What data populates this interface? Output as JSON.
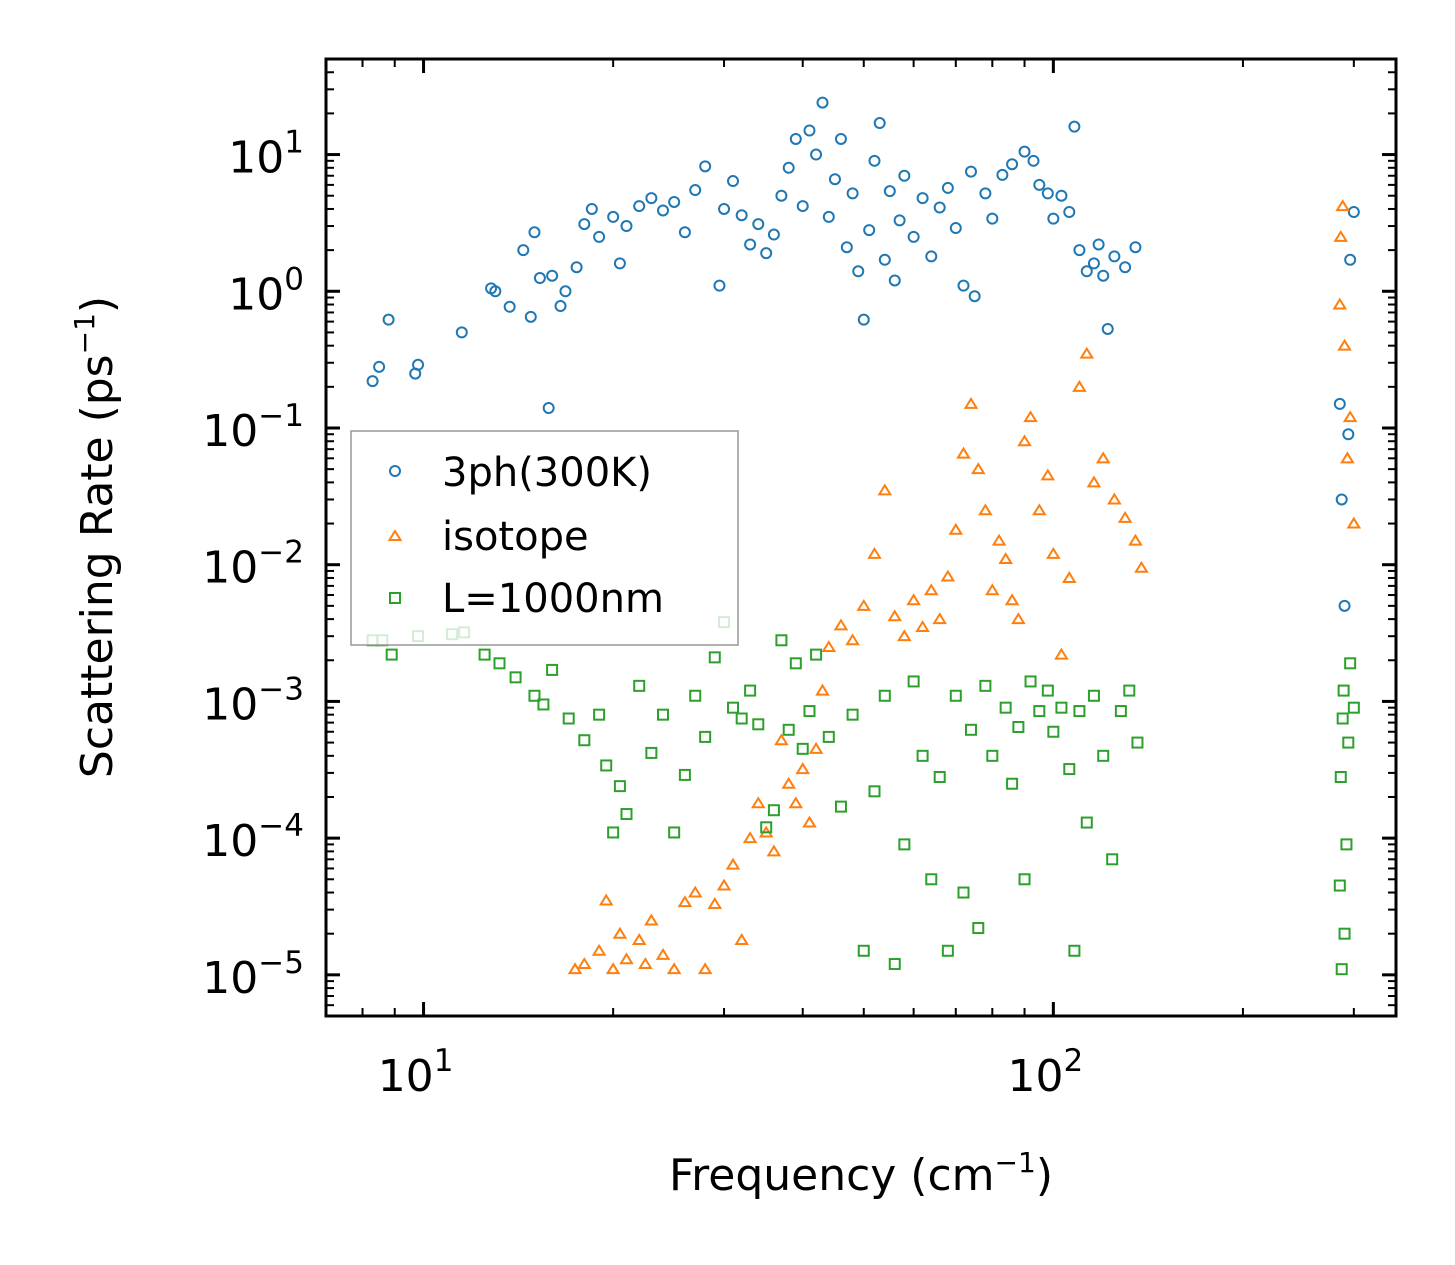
{
  "chart_data": {
    "type": "scatter",
    "xscale": "log",
    "yscale": "log",
    "xlim": [
      7.0,
      350.0
    ],
    "ylim": [
      5e-06,
      50
    ],
    "xlabel": {
      "base": "Frequency (cm",
      "sup": "−1",
      "tail": ")"
    },
    "ylabel": {
      "base": "Scattering Rate (ps",
      "sup": "−1",
      "tail": ")"
    },
    "x_major_ticks": [
      {
        "value": 10,
        "base": "10",
        "exp": "1"
      },
      {
        "value": 100,
        "base": "10",
        "exp": "2"
      }
    ],
    "y_major_ticks": [
      {
        "value": 10,
        "base": "10",
        "exp": "1"
      },
      {
        "value": 1,
        "base": "10",
        "exp": "0"
      },
      {
        "value": 0.1,
        "base": "10",
        "exp": "−1"
      },
      {
        "value": 0.01,
        "base": "10",
        "exp": "−2"
      },
      {
        "value": 0.001,
        "base": "10",
        "exp": "−3"
      },
      {
        "value": 0.0001,
        "base": "10",
        "exp": "−4"
      },
      {
        "value": 1e-05,
        "base": "10",
        "exp": "−5"
      }
    ],
    "legend_position": "center-left",
    "series": [
      {
        "name": "3ph(300K)",
        "marker": "circle",
        "color": "#1f77b4",
        "points": [
          [
            8.3,
            0.22
          ],
          [
            8.5,
            0.28
          ],
          [
            8.8,
            0.62
          ],
          [
            9.7,
            0.25
          ],
          [
            9.8,
            0.29
          ],
          [
            11.5,
            0.5
          ],
          [
            12.8,
            1.05
          ],
          [
            13.0,
            1.0
          ],
          [
            13.7,
            0.77
          ],
          [
            14.4,
            2.0
          ],
          [
            14.8,
            0.65
          ],
          [
            15.0,
            2.7
          ],
          [
            15.3,
            1.25
          ],
          [
            15.8,
            0.14
          ],
          [
            16.0,
            1.3
          ],
          [
            16.5,
            0.78
          ],
          [
            16.8,
            1.0
          ],
          [
            17.5,
            1.5
          ],
          [
            18.0,
            3.1
          ],
          [
            18.5,
            4.0
          ],
          [
            19.0,
            2.5
          ],
          [
            20.0,
            3.5
          ],
          [
            20.5,
            1.6
          ],
          [
            21.0,
            3.0
          ],
          [
            22.0,
            4.2
          ],
          [
            23.0,
            4.8
          ],
          [
            24.0,
            3.9
          ],
          [
            25.0,
            4.5
          ],
          [
            26.0,
            2.7
          ],
          [
            27.0,
            5.5
          ],
          [
            28.0,
            8.2
          ],
          [
            29.5,
            1.1
          ],
          [
            30.0,
            4.0
          ],
          [
            31.0,
            6.4
          ],
          [
            32.0,
            3.6
          ],
          [
            33.0,
            2.2
          ],
          [
            34.0,
            3.1
          ],
          [
            35.0,
            1.9
          ],
          [
            36.0,
            2.6
          ],
          [
            37.0,
            5.0
          ],
          [
            38.0,
            8.0
          ],
          [
            39.0,
            13.0
          ],
          [
            40.0,
            4.2
          ],
          [
            41.0,
            15.0
          ],
          [
            42.0,
            10.0
          ],
          [
            43.0,
            24.0
          ],
          [
            44.0,
            3.5
          ],
          [
            45.0,
            6.6
          ],
          [
            46.0,
            13.0
          ],
          [
            47.0,
            2.1
          ],
          [
            48.0,
            5.2
          ],
          [
            49.0,
            1.4
          ],
          [
            50.0,
            0.62
          ],
          [
            51.0,
            2.8
          ],
          [
            52.0,
            9.0
          ],
          [
            53.0,
            17.0
          ],
          [
            54.0,
            1.7
          ],
          [
            55.0,
            5.4
          ],
          [
            56.0,
            1.2
          ],
          [
            57.0,
            3.3
          ],
          [
            58.0,
            7.0
          ],
          [
            60.0,
            2.5
          ],
          [
            62.0,
            4.8
          ],
          [
            64.0,
            1.8
          ],
          [
            66.0,
            4.1
          ],
          [
            68.0,
            5.7
          ],
          [
            70.0,
            2.9
          ],
          [
            72.0,
            1.1
          ],
          [
            74.0,
            7.5
          ],
          [
            75.0,
            0.92
          ],
          [
            78.0,
            5.2
          ],
          [
            80.0,
            3.4
          ],
          [
            83.0,
            7.1
          ],
          [
            86.0,
            8.5
          ],
          [
            90.0,
            10.5
          ],
          [
            93.0,
            9.0
          ],
          [
            95.0,
            6.0
          ],
          [
            98.0,
            5.2
          ],
          [
            100.0,
            3.4
          ],
          [
            103.0,
            5.0
          ],
          [
            106.0,
            3.8
          ],
          [
            108.0,
            16.0
          ],
          [
            110.0,
            2.0
          ],
          [
            113.0,
            1.4
          ],
          [
            116.0,
            1.6
          ],
          [
            118.0,
            2.2
          ],
          [
            120.0,
            1.3
          ],
          [
            122.0,
            0.53
          ],
          [
            125.0,
            1.8
          ],
          [
            130.0,
            1.5
          ],
          [
            135.0,
            2.1
          ],
          [
            285.0,
            0.15
          ],
          [
            287.0,
            0.03
          ],
          [
            290.0,
            0.005
          ],
          [
            294.0,
            0.09
          ],
          [
            296.0,
            1.7
          ],
          [
            300.0,
            3.8
          ]
        ]
      },
      {
        "name": "isotope",
        "marker": "triangle",
        "color": "#ff7f0e",
        "points": [
          [
            17.4,
            1.1e-05
          ],
          [
            18.0,
            1.2e-05
          ],
          [
            19.0,
            1.5e-05
          ],
          [
            19.5,
            3.5e-05
          ],
          [
            20.0,
            1.1e-05
          ],
          [
            20.5,
            2e-05
          ],
          [
            21.0,
            1.3e-05
          ],
          [
            22.0,
            1.8e-05
          ],
          [
            22.5,
            1.2e-05
          ],
          [
            23.0,
            2.5e-05
          ],
          [
            24.0,
            1.4e-05
          ],
          [
            25.0,
            1.1e-05
          ],
          [
            26.0,
            3.4e-05
          ],
          [
            27.0,
            4e-05
          ],
          [
            28.0,
            1.1e-05
          ],
          [
            29.0,
            3.3e-05
          ],
          [
            30.0,
            4.5e-05
          ],
          [
            31.0,
            6.4e-05
          ],
          [
            32.0,
            1.8e-05
          ],
          [
            33.0,
            0.0001
          ],
          [
            34.0,
            0.00018
          ],
          [
            35.0,
            0.00011
          ],
          [
            36.0,
            8e-05
          ],
          [
            37.0,
            0.00052
          ],
          [
            38.0,
            0.00025
          ],
          [
            39.0,
            0.00018
          ],
          [
            40.0,
            0.00032
          ],
          [
            41.0,
            0.00013
          ],
          [
            42.0,
            0.00045
          ],
          [
            43.0,
            0.0012
          ],
          [
            44.0,
            0.0025
          ],
          [
            46.0,
            0.0036
          ],
          [
            48.0,
            0.0028
          ],
          [
            50.0,
            0.005
          ],
          [
            52.0,
            0.012
          ],
          [
            54.0,
            0.035
          ],
          [
            56.0,
            0.0042
          ],
          [
            58.0,
            0.003
          ],
          [
            60.0,
            0.0055
          ],
          [
            62.0,
            0.0035
          ],
          [
            64.0,
            0.0065
          ],
          [
            66.0,
            0.004
          ],
          [
            68.0,
            0.0082
          ],
          [
            70.0,
            0.018
          ],
          [
            72.0,
            0.065
          ],
          [
            74.0,
            0.15
          ],
          [
            76.0,
            0.05
          ],
          [
            78.0,
            0.025
          ],
          [
            80.0,
            0.0065
          ],
          [
            82.0,
            0.015
          ],
          [
            84.0,
            0.011
          ],
          [
            86.0,
            0.0055
          ],
          [
            88.0,
            0.004
          ],
          [
            90.0,
            0.08
          ],
          [
            92.0,
            0.12
          ],
          [
            95.0,
            0.025
          ],
          [
            98.0,
            0.045
          ],
          [
            100.0,
            0.012
          ],
          [
            103.0,
            0.0022
          ],
          [
            106.0,
            0.008
          ],
          [
            110.0,
            0.2
          ],
          [
            113.0,
            0.35
          ],
          [
            116.0,
            0.04
          ],
          [
            120.0,
            0.06
          ],
          [
            125.0,
            0.03
          ],
          [
            130.0,
            0.022
          ],
          [
            135.0,
            0.015
          ],
          [
            138.0,
            0.0095
          ],
          [
            285.0,
            0.8
          ],
          [
            286.0,
            2.5
          ],
          [
            288.0,
            4.2
          ],
          [
            290.0,
            0.4
          ],
          [
            293.0,
            0.06
          ],
          [
            296.0,
            0.12
          ],
          [
            300.0,
            0.02
          ]
        ]
      },
      {
        "name": "L=1000nm",
        "marker": "square",
        "color": "#2ca02c",
        "points": [
          [
            8.3,
            0.0028
          ],
          [
            8.6,
            0.0028
          ],
          [
            8.9,
            0.0022
          ],
          [
            9.8,
            0.003
          ],
          [
            11.1,
            0.0031
          ],
          [
            11.6,
            0.0032
          ],
          [
            12.5,
            0.0022
          ],
          [
            13.2,
            0.0019
          ],
          [
            14.0,
            0.0015
          ],
          [
            15.0,
            0.0011
          ],
          [
            15.5,
            0.00095
          ],
          [
            16.0,
            0.0017
          ],
          [
            17.0,
            0.00075
          ],
          [
            18.0,
            0.00052
          ],
          [
            19.0,
            0.0008
          ],
          [
            19.5,
            0.00034
          ],
          [
            20.0,
            0.00011
          ],
          [
            20.5,
            0.00024
          ],
          [
            21.0,
            0.00015
          ],
          [
            22.0,
            0.0013
          ],
          [
            23.0,
            0.00042
          ],
          [
            24.0,
            0.0008
          ],
          [
            25.0,
            0.00011
          ],
          [
            26.0,
            0.00029
          ],
          [
            27.0,
            0.0011
          ],
          [
            28.0,
            0.00055
          ],
          [
            29.0,
            0.0021
          ],
          [
            30.0,
            0.0038
          ],
          [
            31.0,
            0.0009
          ],
          [
            32.0,
            0.00075
          ],
          [
            33.0,
            0.0012
          ],
          [
            34.0,
            0.00068
          ],
          [
            35.0,
            0.00012
          ],
          [
            36.0,
            0.00016
          ],
          [
            37.0,
            0.0028
          ],
          [
            38.0,
            0.00062
          ],
          [
            39.0,
            0.0019
          ],
          [
            40.0,
            0.00045
          ],
          [
            41.0,
            0.00085
          ],
          [
            42.0,
            0.0022
          ],
          [
            44.0,
            0.00055
          ],
          [
            46.0,
            0.00017
          ],
          [
            48.0,
            0.0008
          ],
          [
            50.0,
            1.5e-05
          ],
          [
            52.0,
            0.00022
          ],
          [
            54.0,
            0.0011
          ],
          [
            56.0,
            1.2e-05
          ],
          [
            58.0,
            9e-05
          ],
          [
            60.0,
            0.0014
          ],
          [
            62.0,
            0.0004
          ],
          [
            64.0,
            5e-05
          ],
          [
            66.0,
            0.00028
          ],
          [
            68.0,
            1.5e-05
          ],
          [
            70.0,
            0.0011
          ],
          [
            72.0,
            4e-05
          ],
          [
            74.0,
            0.00062
          ],
          [
            76.0,
            2.2e-05
          ],
          [
            78.0,
            0.0013
          ],
          [
            80.0,
            0.0004
          ],
          [
            84.0,
            0.0009
          ],
          [
            86.0,
            0.00025
          ],
          [
            88.0,
            0.00065
          ],
          [
            90.0,
            5e-05
          ],
          [
            92.0,
            0.0014
          ],
          [
            95.0,
            0.00085
          ],
          [
            98.0,
            0.0012
          ],
          [
            100.0,
            0.0006
          ],
          [
            103.0,
            0.0009
          ],
          [
            106.0,
            0.00032
          ],
          [
            108.0,
            1.5e-05
          ],
          [
            110.0,
            0.00085
          ],
          [
            113.0,
            0.00013
          ],
          [
            116.0,
            0.0011
          ],
          [
            120.0,
            0.0004
          ],
          [
            124.0,
            7e-05
          ],
          [
            128.0,
            0.00085
          ],
          [
            132.0,
            0.0012
          ],
          [
            136.0,
            0.0005
          ],
          [
            285.0,
            4.5e-05
          ],
          [
            286.0,
            0.00028
          ],
          [
            287.0,
            1.1e-05
          ],
          [
            288.0,
            0.00075
          ],
          [
            289.0,
            0.0012
          ],
          [
            290.0,
            2e-05
          ],
          [
            292.0,
            9e-05
          ],
          [
            294.0,
            0.0005
          ],
          [
            296.0,
            0.0019
          ],
          [
            300.0,
            0.0009
          ]
        ]
      }
    ]
  }
}
